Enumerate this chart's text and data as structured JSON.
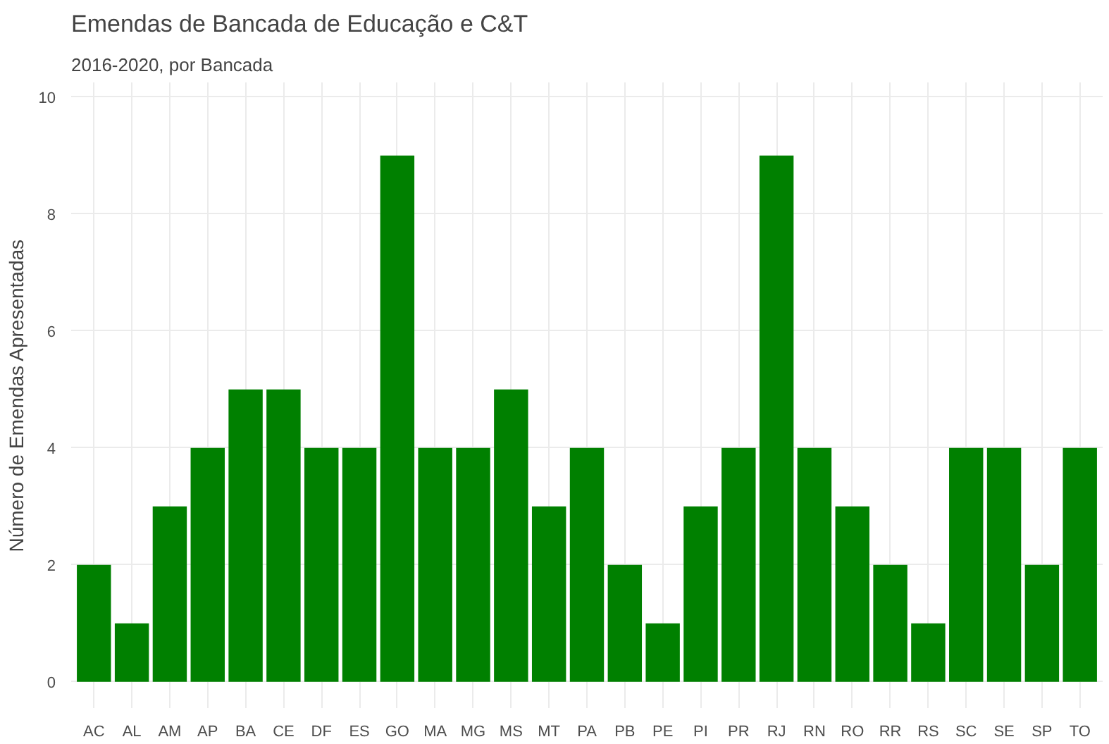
{
  "chart_data": {
    "type": "bar",
    "title": "Emendas de Bancada de Educação e C&T",
    "subtitle": "2016-2020, por Bancada",
    "ylabel": "Número de Emendas Apresentadas",
    "categories": [
      "AC",
      "AL",
      "AM",
      "AP",
      "BA",
      "CE",
      "DF",
      "ES",
      "GO",
      "MA",
      "MG",
      "MS",
      "MT",
      "PA",
      "PB",
      "PE",
      "PI",
      "PR",
      "RJ",
      "RN",
      "RO",
      "RR",
      "RS",
      "SC",
      "SE",
      "SP",
      "TO"
    ],
    "values": [
      2,
      1,
      3,
      4,
      5,
      5,
      4,
      4,
      9,
      4,
      4,
      5,
      3,
      4,
      2,
      1,
      3,
      4,
      9,
      4,
      3,
      2,
      1,
      4,
      4,
      2,
      4
    ],
    "color": "#008000",
    "ylim": [
      -0.45,
      10.25
    ],
    "yticks": [
      0,
      2,
      4,
      6,
      8,
      10
    ],
    "grid": true
  }
}
